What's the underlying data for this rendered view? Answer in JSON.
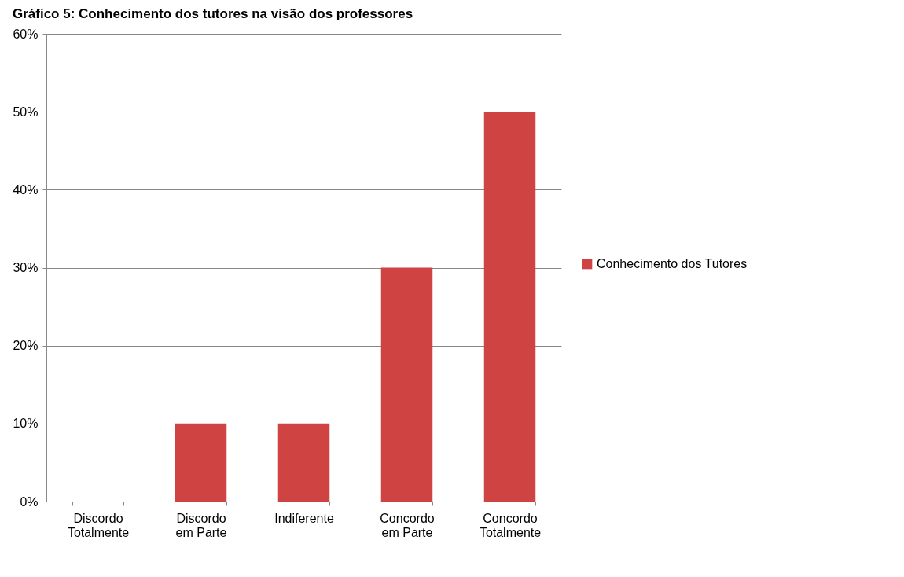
{
  "chart_data": {
    "type": "bar",
    "title": "Gráfico 5: Conhecimento dos tutores na visão dos professores",
    "categories": [
      "Discordo Totalmente",
      "Discordo em Parte",
      "Indiferente",
      "Concordo em Parte",
      "Concordo Totalmente"
    ],
    "series": [
      {
        "name": "Conhecimento dos Tutores",
        "color": "#d04343",
        "values": [
          0,
          10,
          10,
          30,
          50
        ]
      }
    ],
    "ylim": [
      0,
      60
    ],
    "yticks": [
      {
        "value": 0,
        "label": "0%"
      },
      {
        "value": 10,
        "label": "10%"
      },
      {
        "value": 20,
        "label": "20%"
      },
      {
        "value": 30,
        "label": "30%"
      },
      {
        "value": 40,
        "label": "40%"
      },
      {
        "value": 50,
        "label": "50%"
      },
      {
        "value": 60,
        "label": "60%"
      }
    ],
    "grid": "y",
    "legend": "right"
  }
}
